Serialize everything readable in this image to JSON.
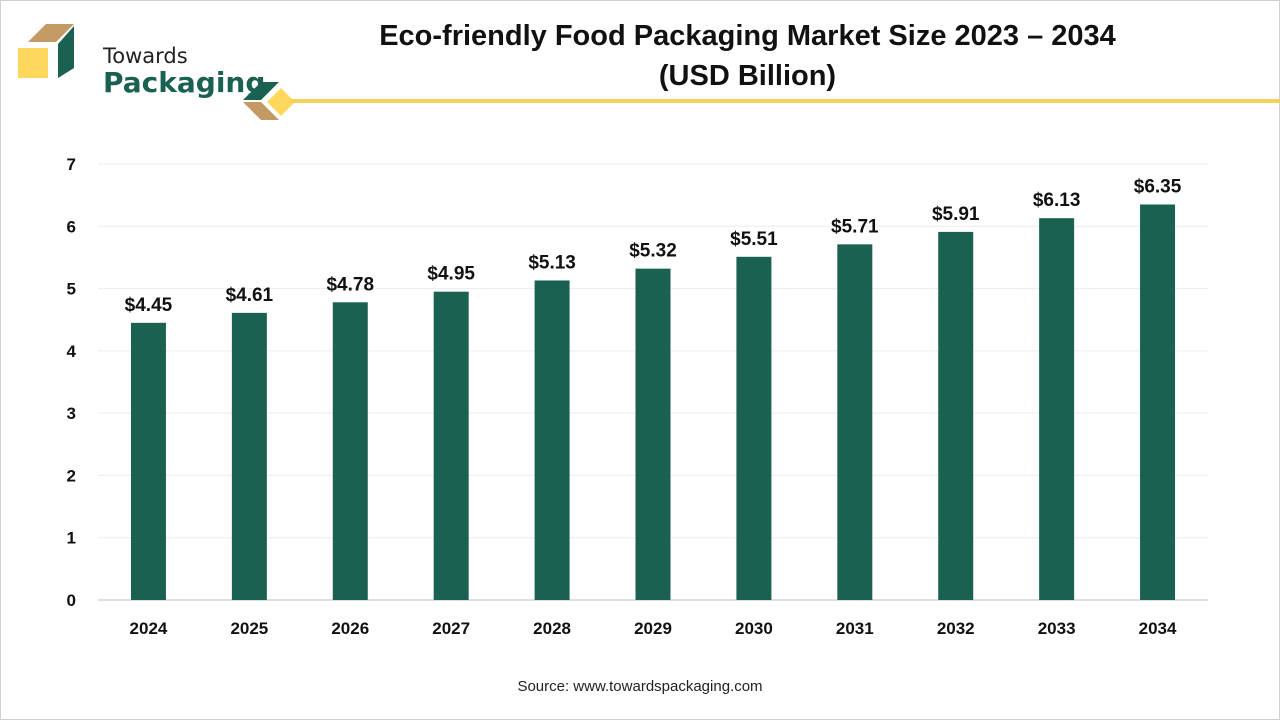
{
  "brand": {
    "line1": "Towards",
    "line2": "Packaging",
    "colors": {
      "green": "#1a6152",
      "tan": "#c49a64",
      "yellow": "#fdd85d"
    }
  },
  "header": {
    "title_line1": "Eco-friendly Food Packaging Market Size 2023 – 2034",
    "title_line2": "(USD Billion)"
  },
  "source": "Source: www.towardspackaging.com",
  "chart_data": {
    "type": "bar",
    "title": "Eco-friendly Food Packaging Market Size 2023 – 2034 (USD Billion)",
    "xlabel": "",
    "ylabel": "",
    "categories": [
      "2024",
      "2025",
      "2026",
      "2027",
      "2028",
      "2029",
      "2030",
      "2031",
      "2032",
      "2033",
      "2034"
    ],
    "values": [
      4.45,
      4.61,
      4.78,
      4.95,
      5.13,
      5.32,
      5.51,
      5.71,
      5.91,
      6.13,
      6.35
    ],
    "data_labels": [
      "$4.45",
      "$4.61",
      "$4.78",
      "$4.95",
      "$5.13",
      "$5.32",
      "$5.51",
      "$5.71",
      "$5.91",
      "$6.13",
      "$6.35"
    ],
    "ylim": [
      0,
      7
    ],
    "yticks": [
      0,
      1,
      2,
      3,
      4,
      5,
      6,
      7
    ],
    "grid": true,
    "bar_color": "#1a6152"
  }
}
